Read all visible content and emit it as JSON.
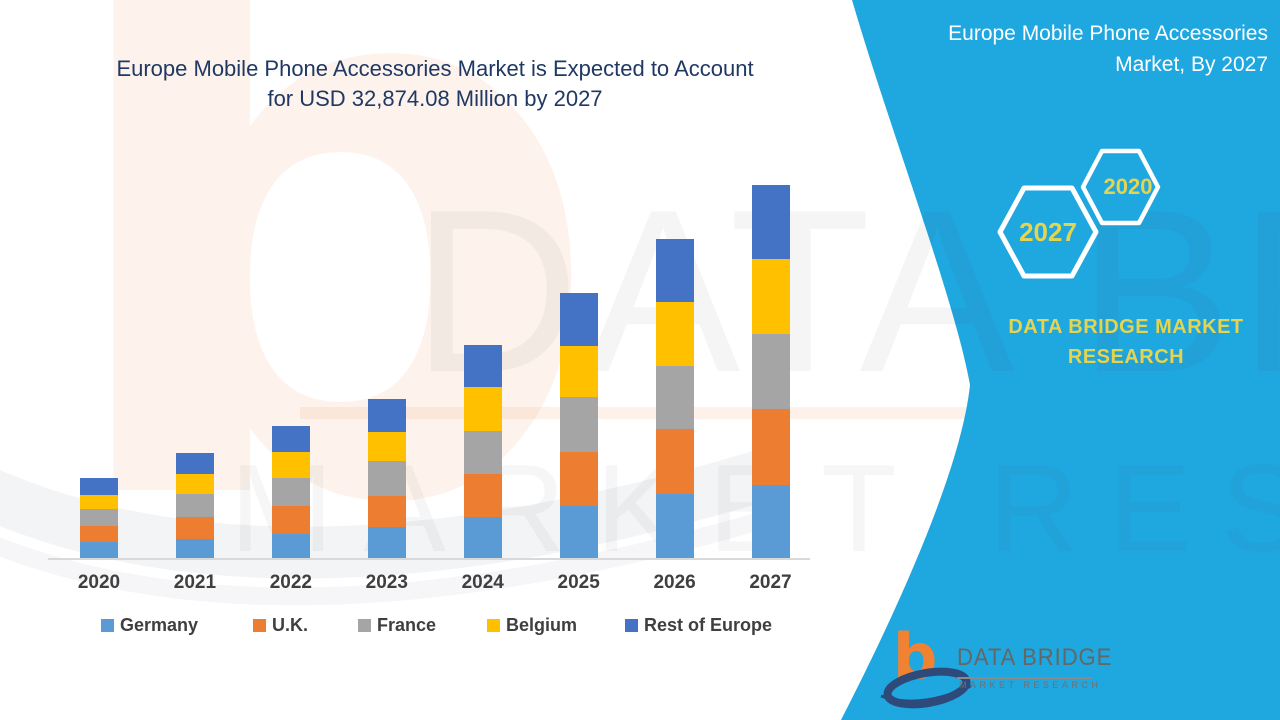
{
  "header": {
    "title_line1": "Europe Mobile Phone Accessories Market is Expected to Account",
    "title_line2": "for USD 32,874.08 Million by 2027"
  },
  "side_panel": {
    "bg_color": "#1FA7E0",
    "accent_text_color": "#E5D44F",
    "title_line1": "Europe Mobile Phone Accessories",
    "title_line2": "Market, By 2027",
    "hexagon_large_label": "2027",
    "hexagon_small_label": "2020",
    "brand_line1": "DATA BRIDGE MARKET",
    "brand_line2": "RESEARCH"
  },
  "logo": {
    "b_glyph": "b",
    "name": "DATA BRIDGE",
    "subtitle": "MARKET RESEARCH"
  },
  "watermark": {
    "b_glyph": "b",
    "line1": "DATA BRIDGE",
    "line2": "MARKET RESEARCH"
  },
  "chart_data": {
    "type": "bar",
    "stacked": true,
    "title": "Europe Mobile Phone Accessories Market is Expected to Account for USD 32,874.08 Million by 2027",
    "unit": "USD Million",
    "grid": false,
    "y_axis_labels_shown": false,
    "legend_position": "bottom",
    "categories": [
      "2020",
      "2021",
      "2022",
      "2023",
      "2024",
      "2025",
      "2026",
      "2027"
    ],
    "series": [
      {
        "name": "Germany",
        "color": "#5B9BD5",
        "values": [
          1500,
          1760,
          2240,
          2820,
          3670,
          4640,
          5720,
          6550
        ]
      },
      {
        "name": "U.K.",
        "color": "#ED7D31",
        "values": [
          1410,
          1900,
          2400,
          2700,
          3760,
          4780,
          5670,
          6656
        ]
      },
      {
        "name": "France",
        "color": "#A5A5A5",
        "values": [
          1500,
          2060,
          2490,
          3080,
          3810,
          4820,
          5570,
          6550
        ]
      },
      {
        "name": "Belgium",
        "color": "#FFC000",
        "values": [
          1230,
          1790,
          2290,
          2610,
          3900,
          4490,
          5630,
          6656
        ]
      },
      {
        "name": "Rest of Europe",
        "color": "#4472C4",
        "values": [
          1500,
          1790,
          2290,
          2870,
          3670,
          4690,
          5520,
          6462.08
        ]
      }
    ],
    "totals_by_year": [
      7140,
      9300,
      11710,
      14080,
      18810,
      23420,
      28110,
      32874.08
    ],
    "highlight_total_2027": 32874.08
  }
}
